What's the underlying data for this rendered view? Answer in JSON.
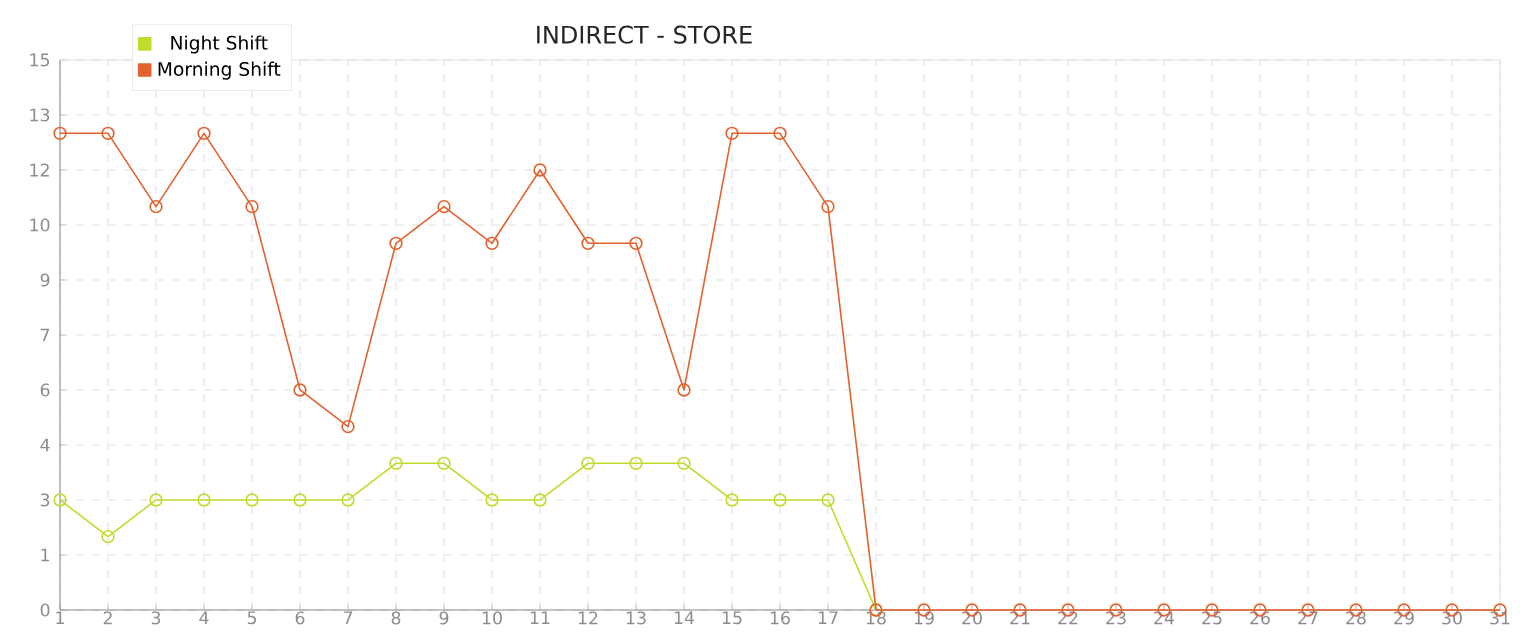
{
  "chart_data": {
    "type": "line",
    "title": "INDIRECT - STORE",
    "categories": [
      "1",
      "2",
      "3",
      "4",
      "5",
      "6",
      "7",
      "8",
      "9",
      "10",
      "11",
      "12",
      "13",
      "14",
      "15",
      "16",
      "17",
      "18",
      "19",
      "20",
      "21",
      "22",
      "23",
      "24",
      "25",
      "26",
      "27",
      "28",
      "29",
      "30",
      "31"
    ],
    "series": [
      {
        "name": "Night Shift",
        "color": "#c2dc2e",
        "values": [
          3,
          2,
          3,
          3,
          3,
          3,
          3,
          4,
          4,
          3,
          3,
          4,
          4,
          4,
          3,
          3,
          3,
          0,
          null,
          null,
          null,
          null,
          null,
          null,
          null,
          null,
          null,
          null,
          null,
          null,
          null
        ]
      },
      {
        "name": "Morning Shift",
        "color": "#e2622d",
        "values": [
          13,
          13,
          11,
          13,
          11,
          6,
          5,
          10,
          11,
          10,
          12,
          10,
          10,
          6,
          13,
          13,
          11,
          0,
          0,
          0,
          0,
          0,
          0,
          0,
          0,
          0,
          0,
          0,
          0,
          0,
          0
        ]
      }
    ],
    "ylim": [
      0,
      15
    ],
    "yticks": [
      0,
      {
        "value": 1.5,
        "label": "1"
      },
      3,
      {
        "value": 4.5,
        "label": "4"
      },
      6,
      {
        "value": 7.5,
        "label": "7"
      },
      9,
      {
        "value": 10.5,
        "label": "10"
      },
      12,
      {
        "value": 13.5,
        "label": "13"
      },
      15
    ],
    "grid": true,
    "legend": "top left",
    "marker": "circle",
    "line_style": "solid"
  }
}
